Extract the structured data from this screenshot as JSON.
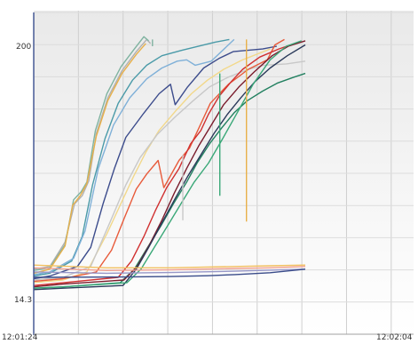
{
  "chart_data": {
    "type": "line",
    "y_tick_labels": [
      "200",
      "14.3"
    ],
    "x_tick_labels": [
      "12:01:24",
      "12:02:04"
    ],
    "y_range": [
      14.3,
      200
    ],
    "x_range_seconds": [
      0,
      40
    ],
    "grid": true,
    "legend": "none",
    "series": [
      {
        "color": "#b0b0b0",
        "points": [
          [
            0,
            36
          ],
          [
            1.7,
            38
          ],
          [
            3.3,
            56
          ],
          [
            4.3,
            84
          ],
          [
            5.1,
            90
          ],
          [
            5.8,
            101
          ],
          [
            6.6,
            136
          ],
          [
            7.8,
            162
          ],
          [
            9.3,
            182
          ],
          [
            10.8,
            196
          ],
          [
            11.9,
            205
          ],
          [
            12.3,
            202
          ]
        ]
      },
      {
        "color": "#7fb3a0",
        "points": [
          [
            0,
            35
          ],
          [
            1.7,
            37
          ],
          [
            3.3,
            54
          ],
          [
            4.2,
            87
          ],
          [
            5,
            93
          ],
          [
            5.6,
            100
          ],
          [
            6.5,
            138
          ],
          [
            7.7,
            165
          ],
          [
            9.2,
            185
          ],
          [
            10.6,
            198
          ],
          [
            11.6,
            207
          ],
          [
            12.1,
            204
          ]
        ]
      },
      {
        "color": "#e8b04a",
        "points": [
          [
            0,
            33
          ],
          [
            1.7,
            36
          ],
          [
            3.3,
            53
          ],
          [
            4.1,
            83
          ],
          [
            4.9,
            90
          ],
          [
            5.6,
            99
          ],
          [
            6.6,
            134
          ],
          [
            7.8,
            160
          ],
          [
            9.3,
            180
          ],
          [
            10.8,
            194
          ],
          [
            11.8,
            202
          ]
        ]
      },
      {
        "color": "#4a9aa8",
        "points": [
          [
            0,
            31
          ],
          [
            1.7,
            33
          ],
          [
            4,
            42
          ],
          [
            5.1,
            60
          ],
          [
            6.2,
            98
          ],
          [
            7.5,
            132
          ],
          [
            8.9,
            158
          ],
          [
            10.4,
            175
          ],
          [
            11.9,
            186
          ],
          [
            13.5,
            193
          ],
          [
            15.6,
            197
          ],
          [
            19.1,
            203
          ],
          [
            20.6,
            205
          ]
        ]
      },
      {
        "color": "#7fb0d8",
        "points": [
          [
            0,
            32
          ],
          [
            1.7,
            34
          ],
          [
            4.2,
            44
          ],
          [
            5.4,
            64
          ],
          [
            6.8,
            110
          ],
          [
            8.4,
            142
          ],
          [
            10.1,
            162
          ],
          [
            11.9,
            176
          ],
          [
            13.5,
            184
          ],
          [
            15.1,
            189
          ],
          [
            16.1,
            190
          ],
          [
            17,
            186
          ],
          [
            18.7,
            189
          ],
          [
            21.1,
            205
          ]
        ]
      },
      {
        "color": "#3c4c8c",
        "points": [
          [
            0,
            29
          ],
          [
            1.7,
            31
          ],
          [
            4.6,
            38
          ],
          [
            6,
            52
          ],
          [
            7.3,
            84
          ],
          [
            8.5,
            110
          ],
          [
            9.7,
            133
          ],
          [
            11.5,
            150
          ],
          [
            13.2,
            165
          ],
          [
            14.4,
            172
          ],
          [
            14.9,
            157
          ],
          [
            16.2,
            170
          ],
          [
            17.9,
            184
          ],
          [
            19.5,
            191
          ],
          [
            21,
            196
          ],
          [
            24.1,
            198
          ],
          [
            25.6,
            200
          ]
        ]
      },
      {
        "color": "#f2d88a",
        "points": [
          [
            0,
            26
          ],
          [
            3.1,
            28
          ],
          [
            5.6,
            34
          ],
          [
            7.7,
            62
          ],
          [
            9.3,
            86
          ],
          [
            10.5,
            104
          ],
          [
            11.8,
            122
          ],
          [
            13.2,
            138
          ],
          [
            14.9,
            152
          ],
          [
            16.6,
            165
          ],
          [
            18.3,
            175
          ],
          [
            20,
            183
          ],
          [
            22,
            190
          ],
          [
            24.9,
            198
          ]
        ]
      },
      {
        "color": "#c8c8c8",
        "points": [
          [
            0,
            28
          ],
          [
            3.1,
            30
          ],
          [
            6,
            38
          ],
          [
            8,
            70
          ],
          [
            9.7,
            98
          ],
          [
            11.2,
            118
          ],
          [
            13,
            135
          ],
          [
            14.9,
            148
          ],
          [
            16.8,
            160
          ],
          [
            18.5,
            170
          ],
          [
            20.4,
            177
          ],
          [
            22.6,
            183
          ],
          [
            24.2,
            186
          ],
          [
            26.6,
            187
          ],
          [
            28.6,
            189
          ]
        ]
      },
      {
        "color": "#e85a3a",
        "points": [
          [
            0,
            27
          ],
          [
            3.1,
            29
          ],
          [
            6.6,
            34
          ],
          [
            8.2,
            50
          ],
          [
            9.5,
            73
          ],
          [
            10.8,
            95
          ],
          [
            11.9,
            106
          ],
          [
            13.1,
            116
          ],
          [
            13.7,
            96
          ],
          [
            15.3,
            116
          ],
          [
            16.4,
            125
          ],
          [
            17.4,
            140
          ],
          [
            18.6,
            158
          ],
          [
            20.5,
            172
          ],
          [
            22.6,
            183
          ],
          [
            24.6,
            190
          ],
          [
            25.4,
            201
          ],
          [
            26.4,
            205
          ]
        ]
      },
      {
        "color": "#d03030",
        "points": [
          [
            0,
            24
          ],
          [
            3.1,
            26
          ],
          [
            8.9,
            30
          ],
          [
            10.3,
            42
          ],
          [
            11.6,
            60
          ],
          [
            12.8,
            79
          ],
          [
            14,
            96
          ],
          [
            15.3,
            110
          ],
          [
            16.5,
            128
          ],
          [
            17.6,
            138
          ],
          [
            18.4,
            150
          ],
          [
            19.5,
            163
          ],
          [
            20.8,
            174
          ],
          [
            22,
            183
          ],
          [
            23.8,
            192
          ],
          [
            25.8,
            198
          ],
          [
            27.9,
            203
          ]
        ]
      },
      {
        "color": "#228060",
        "points": [
          [
            0,
            22
          ],
          [
            3.1,
            23
          ],
          [
            9.1,
            26
          ],
          [
            10.6,
            36
          ],
          [
            12,
            52
          ],
          [
            13.4,
            68
          ],
          [
            14.7,
            84
          ],
          [
            16.1,
            100
          ],
          [
            17.2,
            114
          ],
          [
            18.5,
            128
          ],
          [
            19.8,
            140
          ],
          [
            21.1,
            151
          ],
          [
            22.5,
            160
          ],
          [
            24.1,
            167
          ],
          [
            25.7,
            173
          ],
          [
            27.3,
            177
          ],
          [
            28.6,
            180
          ]
        ]
      },
      {
        "color": "#7a1c2c",
        "points": [
          [
            0,
            23
          ],
          [
            3.1,
            25
          ],
          [
            9.5,
            28
          ],
          [
            10.9,
            38
          ],
          [
            12.2,
            54
          ],
          [
            13.5,
            72
          ],
          [
            14.8,
            92
          ],
          [
            16.1,
            110
          ],
          [
            17.4,
            127
          ],
          [
            18.7,
            142
          ],
          [
            20,
            157
          ],
          [
            21.6,
            170
          ],
          [
            23.2,
            181
          ],
          [
            25.1,
            193
          ],
          [
            26.8,
            200
          ],
          [
            28.6,
            204
          ]
        ]
      },
      {
        "color": "#2a3a5a",
        "points": [
          [
            0,
            21
          ],
          [
            3.1,
            22
          ],
          [
            9.4,
            24
          ],
          [
            10.8,
            36
          ],
          [
            12.1,
            52
          ],
          [
            13.5,
            70
          ],
          [
            14.9,
            88
          ],
          [
            16.2,
            104
          ],
          [
            17.6,
            120
          ],
          [
            19,
            136
          ],
          [
            20.4,
            150
          ],
          [
            21.8,
            162
          ],
          [
            23.3,
            174
          ],
          [
            24.9,
            184
          ],
          [
            26.7,
            193
          ],
          [
            28.6,
            201
          ]
        ]
      },
      {
        "color": "#3aa878",
        "points": [
          [
            0,
            22
          ],
          [
            3.1,
            23
          ],
          [
            9.8,
            26
          ],
          [
            11.3,
            36
          ],
          [
            12.7,
            52
          ],
          [
            14.1,
            68
          ],
          [
            15.5,
            84
          ],
          [
            16.9,
            100
          ],
          [
            18.4,
            114
          ],
          [
            19.9,
            132
          ],
          [
            21.5,
            152
          ],
          [
            23.1,
            172
          ],
          [
            24.9,
            190
          ],
          [
            26.6,
            200
          ],
          [
            28.2,
            204
          ]
        ]
      },
      {
        "color": "#f2c060",
        "points": [
          [
            0,
            39
          ],
          [
            7.7,
            37
          ],
          [
            14.4,
            37
          ],
          [
            21.2,
            38
          ],
          [
            24.9,
            38.5
          ],
          [
            28.6,
            39
          ]
        ]
      },
      {
        "color": "#f0a090",
        "points": [
          [
            0,
            37
          ],
          [
            7.7,
            35
          ],
          [
            14.4,
            35.5
          ],
          [
            21.2,
            36.5
          ],
          [
            24.9,
            37
          ],
          [
            28.6,
            38
          ]
        ]
      },
      {
        "color": "#9898c8",
        "points": [
          [
            0,
            34
          ],
          [
            7.7,
            33
          ],
          [
            14.4,
            33.5
          ],
          [
            21.2,
            34.5
          ],
          [
            24.9,
            35.3
          ],
          [
            28.6,
            36
          ]
        ]
      },
      {
        "color": "#3a4c8a",
        "points": [
          [
            0,
            30
          ],
          [
            7.7,
            30.2
          ],
          [
            14.4,
            30.6
          ],
          [
            18.3,
            31.2
          ],
          [
            21.2,
            32
          ],
          [
            24.9,
            33.4
          ],
          [
            28.6,
            36
          ]
        ]
      }
    ],
    "gaps": [
      {
        "color": "#3aa878",
        "drop": [
          [
            19.6,
            90
          ],
          [
            19.6,
            180
          ]
        ]
      },
      {
        "color": "#e8b04a",
        "drop": [
          [
            22.4,
            71
          ],
          [
            22.4,
            205
          ]
        ]
      },
      {
        "color": "#c8c8c8",
        "drop": [
          [
            15.7,
            72
          ],
          [
            15.7,
            120
          ]
        ]
      },
      {
        "color": "#7fb3a0",
        "drop": [
          [
            12.5,
            200
          ],
          [
            12.5,
            205
          ]
        ]
      }
    ]
  }
}
